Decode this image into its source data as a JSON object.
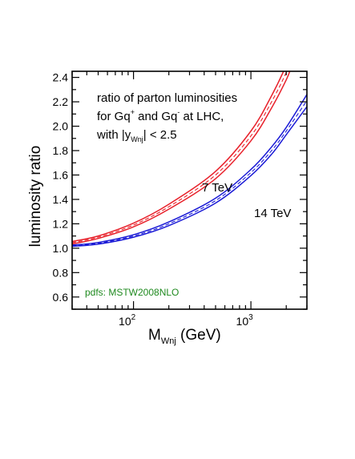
{
  "chart_data": {
    "type": "line",
    "title": "",
    "annotation_lines": [
      "ratio of parton luminosities",
      "for Gq and Gq at LHC,",
      "with |y| < 2.5"
    ],
    "annotation_parts": {
      "line2_a": "for Gq",
      "line2_sup1": "+",
      "line2_b": " and Gq",
      "line2_sup2": "-",
      "line2_c": " at LHC,",
      "line3_a": "with |y",
      "line3_sub": "Wnj",
      "line3_b": "| < 2.5"
    },
    "pdf_label": "pdfs: MSTW2008NLO",
    "xlabel": "M",
    "xlabel_sub": "Wnj",
    "xlabel_unit": " (GeV)",
    "ylabel": "luminosity ratio",
    "x_scale": "log",
    "xlim": [
      30,
      3000
    ],
    "ylim": [
      0.5,
      2.45
    ],
    "x_ticks": [
      {
        "base": "10",
        "exp": "2"
      },
      {
        "base": "10",
        "exp": "3"
      }
    ],
    "y_ticks": [
      "0.6",
      "0.8",
      "1.0",
      "1.2",
      "1.4",
      "1.6",
      "1.8",
      "2.0",
      "2.2",
      "2.4"
    ],
    "grid": false,
    "series": [
      {
        "name": "7 TeV",
        "color": "#e8202a",
        "x": [
          30,
          50,
          100,
          200,
          500,
          1000,
          1500,
          2000,
          2200
        ],
        "central": [
          1.045,
          1.09,
          1.19,
          1.34,
          1.6,
          1.92,
          2.2,
          2.44,
          2.55
        ],
        "upper": [
          1.055,
          1.1,
          1.205,
          1.36,
          1.63,
          1.96,
          2.25,
          2.5,
          2.62
        ],
        "lower": [
          1.035,
          1.08,
          1.175,
          1.32,
          1.57,
          1.88,
          2.15,
          2.38,
          2.48
        ]
      },
      {
        "name": "14 TeV",
        "color": "#1a1ad6",
        "x": [
          30,
          50,
          100,
          200,
          500,
          1000,
          1500,
          2000,
          3000
        ],
        "central": [
          1.02,
          1.04,
          1.1,
          1.2,
          1.39,
          1.62,
          1.8,
          1.96,
          2.21
        ],
        "upper": [
          1.025,
          1.047,
          1.11,
          1.215,
          1.41,
          1.645,
          1.83,
          1.99,
          2.26
        ],
        "lower": [
          1.015,
          1.033,
          1.09,
          1.185,
          1.37,
          1.595,
          1.77,
          1.93,
          2.16
        ]
      }
    ]
  },
  "colors": {
    "annotation_pdf": "#1f8a1f",
    "axis": "#000000"
  }
}
